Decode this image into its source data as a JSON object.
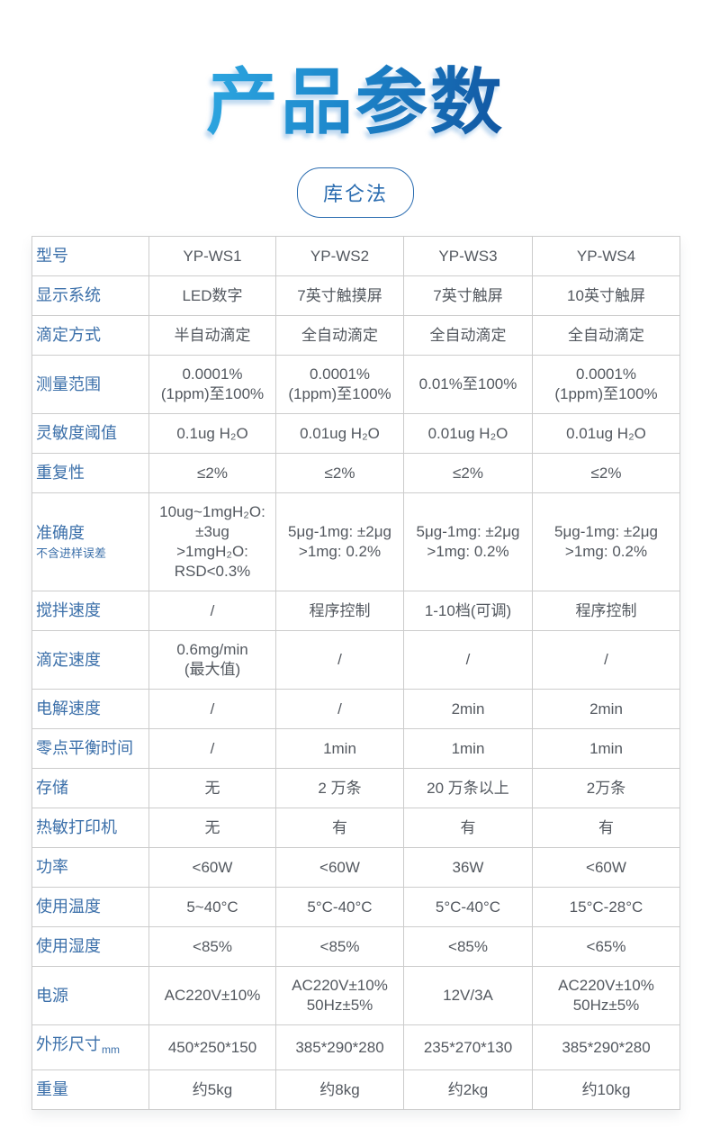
{
  "title": "产品参数",
  "badge": "库仑法",
  "colors": {
    "title_gradient_start": "#2ba3de",
    "title_gradient_end": "#1259a4",
    "pill_blue": "#2a6cb0",
    "label_blue": "#3c70aa",
    "value_gray": "#53585f",
    "border_gray": "#cccccc"
  },
  "table": {
    "column_headers": [
      "型号",
      "YP-WS1",
      "YP-WS2",
      "YP-WS3",
      "YP-WS4"
    ],
    "rows": [
      {
        "label": "型号",
        "values": [
          [
            "YP-WS1"
          ],
          [
            "YP-WS2"
          ],
          [
            "YP-WS3"
          ],
          [
            "YP-WS4"
          ]
        ]
      },
      {
        "label": "显示系统",
        "values": [
          [
            "LED数字"
          ],
          [
            "7英寸触摸屏"
          ],
          [
            "7英寸触屏"
          ],
          [
            "10英寸触屏"
          ]
        ]
      },
      {
        "label": "滴定方式",
        "values": [
          [
            "半自动滴定"
          ],
          [
            "全自动滴定"
          ],
          [
            "全自动滴定"
          ],
          [
            "全自动滴定"
          ]
        ]
      },
      {
        "label": "测量范围",
        "values": [
          [
            "0.0001%",
            "(1ppm)至100%"
          ],
          [
            "0.0001%",
            "(1ppm)至100%"
          ],
          [
            "0.01%至100%"
          ],
          [
            "0.0001%",
            "(1ppm)至100%"
          ]
        ]
      },
      {
        "label": "灵敏度阈值",
        "values": [
          [
            "0.1ug H₂O"
          ],
          [
            "0.01ug H₂O"
          ],
          [
            "0.01ug H₂O"
          ],
          [
            "0.01ug H₂O"
          ]
        ]
      },
      {
        "label": "重复性",
        "values": [
          [
            "≤2%"
          ],
          [
            "≤2%"
          ],
          [
            "≤2%"
          ],
          [
            "≤2%"
          ]
        ]
      },
      {
        "label": "准确度",
        "label_sub": "不含进样误差",
        "values": [
          [
            "10ug~1mgH₂O:",
            "±3ug",
            ">1mgH₂O:",
            "RSD<0.3%"
          ],
          [
            "5μg-1mg: ±2μg",
            ">1mg: 0.2%"
          ],
          [
            "5μg-1mg: ±2μg",
            ">1mg: 0.2%"
          ],
          [
            "5μg-1mg: ±2μg",
            ">1mg: 0.2%"
          ]
        ]
      },
      {
        "label": "搅拌速度",
        "values": [
          [
            "/"
          ],
          [
            "程序控制"
          ],
          [
            "1-10档(可调)"
          ],
          [
            "程序控制"
          ]
        ]
      },
      {
        "label": "滴定速度",
        "values": [
          [
            "0.6mg/min",
            "(最大值)"
          ],
          [
            "/"
          ],
          [
            "/"
          ],
          [
            "/"
          ]
        ]
      },
      {
        "label": "电解速度",
        "values": [
          [
            "/"
          ],
          [
            "/"
          ],
          [
            "2min"
          ],
          [
            "2min"
          ]
        ]
      },
      {
        "label": "零点平衡时间",
        "values": [
          [
            "/"
          ],
          [
            "1min"
          ],
          [
            "1min"
          ],
          [
            "1min"
          ]
        ]
      },
      {
        "label": "存储",
        "values": [
          [
            "无"
          ],
          [
            "2 万条"
          ],
          [
            "20 万条以上"
          ],
          [
            "2万条"
          ]
        ]
      },
      {
        "label": "热敏打印机",
        "values": [
          [
            "无"
          ],
          [
            "有"
          ],
          [
            "有"
          ],
          [
            "有"
          ]
        ]
      },
      {
        "label": "功率",
        "values": [
          [
            "<60W"
          ],
          [
            "<60W"
          ],
          [
            "36W"
          ],
          [
            "<60W"
          ]
        ]
      },
      {
        "label": "使用温度",
        "values": [
          [
            "5~40°C"
          ],
          [
            "5°C-40°C"
          ],
          [
            "5°C-40°C"
          ],
          [
            "15°C-28°C"
          ]
        ]
      },
      {
        "label": "使用湿度",
        "values": [
          [
            "<85%"
          ],
          [
            "<85%"
          ],
          [
            "<85%"
          ],
          [
            "<65%"
          ]
        ]
      },
      {
        "label": "电源",
        "values": [
          [
            "AC220V±10%"
          ],
          [
            "AC220V±10%",
            "50Hz±5%"
          ],
          [
            "12V/3A"
          ],
          [
            "AC220V±10%",
            "50Hz±5%"
          ]
        ]
      },
      {
        "label": "外形尺寸",
        "label_unit": "mm",
        "values": [
          [
            "450*250*150"
          ],
          [
            "385*290*280"
          ],
          [
            "235*270*130"
          ],
          [
            "385*290*280"
          ]
        ]
      },
      {
        "label": "重量",
        "values": [
          [
            "约5kg"
          ],
          [
            "约8kg"
          ],
          [
            "约2kg"
          ],
          [
            "约10kg"
          ]
        ]
      }
    ]
  }
}
